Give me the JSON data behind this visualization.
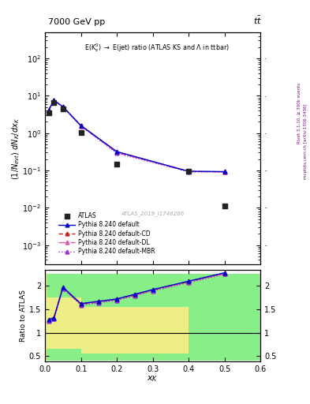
{
  "title_top": "7000 GeV pp",
  "title_top_right": "t$\\bar{t}$",
  "annotation": "E(K$^0_s$) $\\rightarrow$ E(jet) ratio (ATLAS KS and $\\Lambda$ in ttbar)",
  "watermark": "ATLAS_2019_I1746286",
  "ylabel_main": "$(1/N_{evt})$ $dN_K/dx_K$",
  "ylabel_ratio": "Ratio to ATLAS",
  "xlabel": "$x_K$",
  "right_label_top": "Rivet 3.1.10, ≥ 300k events",
  "right_label_bot": "mcplots.cern.ch [arXiv:1306.3436]",
  "atlas_x": [
    0.01,
    0.025,
    0.05,
    0.1,
    0.2,
    0.4,
    0.5
  ],
  "atlas_y": [
    3.5,
    6.5,
    4.5,
    1.05,
    0.145,
    0.093,
    0.011
  ],
  "pythia_x": [
    0.01,
    0.025,
    0.05,
    0.1,
    0.2,
    0.4,
    0.5
  ],
  "pythia_default_y": [
    4.1,
    7.6,
    5.1,
    1.6,
    0.32,
    0.095,
    0.093
  ],
  "pythia_cd_y": [
    4.05,
    7.55,
    5.05,
    1.58,
    0.31,
    0.094,
    0.092
  ],
  "pythia_dl_y": [
    4.0,
    7.5,
    5.0,
    1.56,
    0.3,
    0.093,
    0.091
  ],
  "pythia_mbr_y": [
    3.95,
    7.45,
    4.95,
    1.54,
    0.29,
    0.092,
    0.09
  ],
  "ratio_x": [
    0.01,
    0.025,
    0.05,
    0.1,
    0.15,
    0.2,
    0.25,
    0.3,
    0.4,
    0.5
  ],
  "ratio_default": [
    1.28,
    1.32,
    1.97,
    1.62,
    1.67,
    1.72,
    1.82,
    1.92,
    2.1,
    2.28
  ],
  "ratio_cd": [
    1.27,
    1.31,
    1.96,
    1.61,
    1.66,
    1.71,
    1.81,
    1.91,
    2.09,
    2.27
  ],
  "ratio_dl": [
    1.26,
    1.3,
    1.95,
    1.6,
    1.65,
    1.7,
    1.8,
    1.9,
    2.08,
    2.26
  ],
  "ratio_mbr": [
    1.25,
    1.29,
    1.94,
    1.59,
    1.64,
    1.69,
    1.79,
    1.89,
    2.07,
    2.25
  ],
  "green_band_bins": [
    [
      0.0,
      0.005
    ],
    [
      0.005,
      0.02
    ],
    [
      0.02,
      0.1
    ],
    [
      0.1,
      0.15
    ],
    [
      0.15,
      0.4
    ],
    [
      0.4,
      0.6
    ]
  ],
  "green_band_lo": [
    0.4,
    0.4,
    0.4,
    0.4,
    0.4,
    0.4
  ],
  "green_band_hi": [
    2.25,
    2.25,
    2.25,
    2.25,
    2.25,
    2.25
  ],
  "yellow_band_bins": [
    [
      0.0,
      0.005
    ],
    [
      0.005,
      0.02
    ],
    [
      0.02,
      0.1
    ],
    [
      0.1,
      0.15
    ],
    [
      0.15,
      0.4
    ],
    [
      0.4,
      0.6
    ]
  ],
  "yellow_band_lo": [
    0.4,
    0.65,
    0.65,
    0.55,
    0.55,
    0.4
  ],
  "yellow_band_hi": [
    2.25,
    1.75,
    1.75,
    1.55,
    1.55,
    0.4
  ],
  "xlim": [
    0.0,
    0.6
  ],
  "ylim_main": [
    0.0003,
    500
  ],
  "ylim_ratio": [
    0.38,
    2.35
  ],
  "color_atlas": "#222222",
  "color_default": "#0000cc",
  "color_cd": "#cc2222",
  "color_dl": "#dd55aa",
  "color_mbr": "#9933cc",
  "green_color": "#88ee88",
  "yellow_color": "#eeee88"
}
